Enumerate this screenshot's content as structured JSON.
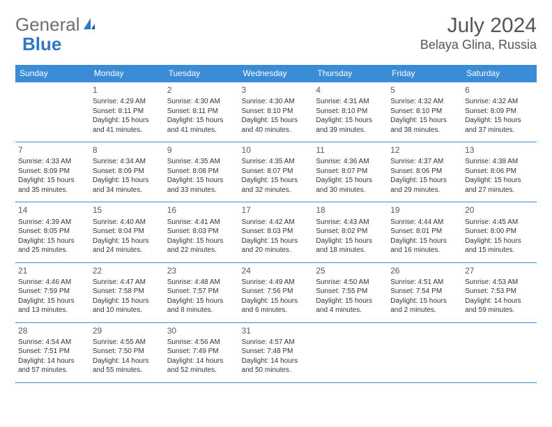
{
  "brand": {
    "part1": "General",
    "part2": "Blue"
  },
  "title": "July 2024",
  "location": "Belaya Glina, Russia",
  "colors": {
    "header_bg": "#3a8cd6",
    "header_text": "#ffffff",
    "border": "#3a8cd6",
    "logo_gray": "#6e6e6e",
    "logo_blue": "#2f78c3",
    "title_color": "#555555",
    "cell_text": "#333333"
  },
  "day_headers": [
    "Sunday",
    "Monday",
    "Tuesday",
    "Wednesday",
    "Thursday",
    "Friday",
    "Saturday"
  ],
  "weeks": [
    [
      null,
      {
        "n": "1",
        "sr": "Sunrise: 4:29 AM",
        "ss": "Sunset: 8:11 PM",
        "d1": "Daylight: 15 hours",
        "d2": "and 41 minutes."
      },
      {
        "n": "2",
        "sr": "Sunrise: 4:30 AM",
        "ss": "Sunset: 8:11 PM",
        "d1": "Daylight: 15 hours",
        "d2": "and 41 minutes."
      },
      {
        "n": "3",
        "sr": "Sunrise: 4:30 AM",
        "ss": "Sunset: 8:10 PM",
        "d1": "Daylight: 15 hours",
        "d2": "and 40 minutes."
      },
      {
        "n": "4",
        "sr": "Sunrise: 4:31 AM",
        "ss": "Sunset: 8:10 PM",
        "d1": "Daylight: 15 hours",
        "d2": "and 39 minutes."
      },
      {
        "n": "5",
        "sr": "Sunrise: 4:32 AM",
        "ss": "Sunset: 8:10 PM",
        "d1": "Daylight: 15 hours",
        "d2": "and 38 minutes."
      },
      {
        "n": "6",
        "sr": "Sunrise: 4:32 AM",
        "ss": "Sunset: 8:09 PM",
        "d1": "Daylight: 15 hours",
        "d2": "and 37 minutes."
      }
    ],
    [
      {
        "n": "7",
        "sr": "Sunrise: 4:33 AM",
        "ss": "Sunset: 8:09 PM",
        "d1": "Daylight: 15 hours",
        "d2": "and 35 minutes."
      },
      {
        "n": "8",
        "sr": "Sunrise: 4:34 AM",
        "ss": "Sunset: 8:09 PM",
        "d1": "Daylight: 15 hours",
        "d2": "and 34 minutes."
      },
      {
        "n": "9",
        "sr": "Sunrise: 4:35 AM",
        "ss": "Sunset: 8:08 PM",
        "d1": "Daylight: 15 hours",
        "d2": "and 33 minutes."
      },
      {
        "n": "10",
        "sr": "Sunrise: 4:35 AM",
        "ss": "Sunset: 8:07 PM",
        "d1": "Daylight: 15 hours",
        "d2": "and 32 minutes."
      },
      {
        "n": "11",
        "sr": "Sunrise: 4:36 AM",
        "ss": "Sunset: 8:07 PM",
        "d1": "Daylight: 15 hours",
        "d2": "and 30 minutes."
      },
      {
        "n": "12",
        "sr": "Sunrise: 4:37 AM",
        "ss": "Sunset: 8:06 PM",
        "d1": "Daylight: 15 hours",
        "d2": "and 29 minutes."
      },
      {
        "n": "13",
        "sr": "Sunrise: 4:38 AM",
        "ss": "Sunset: 8:06 PM",
        "d1": "Daylight: 15 hours",
        "d2": "and 27 minutes."
      }
    ],
    [
      {
        "n": "14",
        "sr": "Sunrise: 4:39 AM",
        "ss": "Sunset: 8:05 PM",
        "d1": "Daylight: 15 hours",
        "d2": "and 25 minutes."
      },
      {
        "n": "15",
        "sr": "Sunrise: 4:40 AM",
        "ss": "Sunset: 8:04 PM",
        "d1": "Daylight: 15 hours",
        "d2": "and 24 minutes."
      },
      {
        "n": "16",
        "sr": "Sunrise: 4:41 AM",
        "ss": "Sunset: 8:03 PM",
        "d1": "Daylight: 15 hours",
        "d2": "and 22 minutes."
      },
      {
        "n": "17",
        "sr": "Sunrise: 4:42 AM",
        "ss": "Sunset: 8:03 PM",
        "d1": "Daylight: 15 hours",
        "d2": "and 20 minutes."
      },
      {
        "n": "18",
        "sr": "Sunrise: 4:43 AM",
        "ss": "Sunset: 8:02 PM",
        "d1": "Daylight: 15 hours",
        "d2": "and 18 minutes."
      },
      {
        "n": "19",
        "sr": "Sunrise: 4:44 AM",
        "ss": "Sunset: 8:01 PM",
        "d1": "Daylight: 15 hours",
        "d2": "and 16 minutes."
      },
      {
        "n": "20",
        "sr": "Sunrise: 4:45 AM",
        "ss": "Sunset: 8:00 PM",
        "d1": "Daylight: 15 hours",
        "d2": "and 15 minutes."
      }
    ],
    [
      {
        "n": "21",
        "sr": "Sunrise: 4:46 AM",
        "ss": "Sunset: 7:59 PM",
        "d1": "Daylight: 15 hours",
        "d2": "and 13 minutes."
      },
      {
        "n": "22",
        "sr": "Sunrise: 4:47 AM",
        "ss": "Sunset: 7:58 PM",
        "d1": "Daylight: 15 hours",
        "d2": "and 10 minutes."
      },
      {
        "n": "23",
        "sr": "Sunrise: 4:48 AM",
        "ss": "Sunset: 7:57 PM",
        "d1": "Daylight: 15 hours",
        "d2": "and 8 minutes."
      },
      {
        "n": "24",
        "sr": "Sunrise: 4:49 AM",
        "ss": "Sunset: 7:56 PM",
        "d1": "Daylight: 15 hours",
        "d2": "and 6 minutes."
      },
      {
        "n": "25",
        "sr": "Sunrise: 4:50 AM",
        "ss": "Sunset: 7:55 PM",
        "d1": "Daylight: 15 hours",
        "d2": "and 4 minutes."
      },
      {
        "n": "26",
        "sr": "Sunrise: 4:51 AM",
        "ss": "Sunset: 7:54 PM",
        "d1": "Daylight: 15 hours",
        "d2": "and 2 minutes."
      },
      {
        "n": "27",
        "sr": "Sunrise: 4:53 AM",
        "ss": "Sunset: 7:53 PM",
        "d1": "Daylight: 14 hours",
        "d2": "and 59 minutes."
      }
    ],
    [
      {
        "n": "28",
        "sr": "Sunrise: 4:54 AM",
        "ss": "Sunset: 7:51 PM",
        "d1": "Daylight: 14 hours",
        "d2": "and 57 minutes."
      },
      {
        "n": "29",
        "sr": "Sunrise: 4:55 AM",
        "ss": "Sunset: 7:50 PM",
        "d1": "Daylight: 14 hours",
        "d2": "and 55 minutes."
      },
      {
        "n": "30",
        "sr": "Sunrise: 4:56 AM",
        "ss": "Sunset: 7:49 PM",
        "d1": "Daylight: 14 hours",
        "d2": "and 52 minutes."
      },
      {
        "n": "31",
        "sr": "Sunrise: 4:57 AM",
        "ss": "Sunset: 7:48 PM",
        "d1": "Daylight: 14 hours",
        "d2": "and 50 minutes."
      },
      null,
      null,
      null
    ]
  ]
}
